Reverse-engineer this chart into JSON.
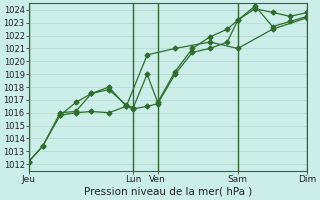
{
  "xlabel": "Pression niveau de la mer( hPa )",
  "bg_color": "#cceee8",
  "grid_minor_color": "#bbddd8",
  "grid_major_color": "#99ccbb",
  "line_color": "#2d6e2d",
  "day_line_color": "#336633",
  "spine_color": "#336633",
  "ylim": [
    1011.5,
    1024.5
  ],
  "yticks": [
    1012,
    1013,
    1014,
    1015,
    1016,
    1017,
    1018,
    1019,
    1020,
    1021,
    1022,
    1023,
    1024
  ],
  "xlim": [
    0,
    8.0
  ],
  "xtick_positions": [
    0.0,
    3.0,
    3.7,
    6.0,
    8.0
  ],
  "xtick_labels": [
    "Jeu",
    "Lun",
    "Ven",
    "Sam",
    "Dim"
  ],
  "day_lines": [
    0.0,
    3.0,
    3.7,
    6.0,
    8.0
  ],
  "line1_x": [
    0,
    0.4,
    0.9,
    1.35,
    1.8,
    2.3,
    2.8,
    3.0,
    3.4,
    3.7,
    4.2,
    4.7,
    5.2,
    5.7,
    6.0,
    6.5,
    7.0,
    7.5,
    8.0
  ],
  "line1_y": [
    1012.2,
    1013.4,
    1015.8,
    1016.0,
    1016.1,
    1016.0,
    1016.5,
    1016.3,
    1016.5,
    1016.7,
    1019.0,
    1020.7,
    1021.0,
    1021.5,
    1023.2,
    1024.1,
    1023.8,
    1023.5,
    1023.8
  ],
  "line2_x": [
    0,
    0.4,
    0.9,
    1.35,
    1.8,
    2.3,
    2.8,
    3.0,
    3.4,
    3.7,
    4.2,
    4.7,
    5.2,
    5.7,
    6.0,
    6.5,
    7.0,
    7.5,
    8.0
  ],
  "line2_y": [
    1012.2,
    1013.4,
    1016.0,
    1016.1,
    1017.5,
    1017.8,
    1016.6,
    1016.4,
    1019.0,
    1016.8,
    1019.2,
    1021.0,
    1021.9,
    1022.5,
    1023.2,
    1024.3,
    1022.7,
    1023.1,
    1023.5
  ],
  "line3_x": [
    0.9,
    1.35,
    1.8,
    2.3,
    2.8,
    3.4,
    4.2,
    5.2,
    6.0,
    7.0,
    8.0
  ],
  "line3_y": [
    1015.8,
    1016.8,
    1017.5,
    1018.0,
    1016.5,
    1020.5,
    1021.0,
    1021.5,
    1021.0,
    1022.5,
    1023.4
  ],
  "marker": "D",
  "markersize": 2.5,
  "linewidth": 0.9,
  "tick_fontsize": 6.0,
  "xlabel_fontsize": 7.5
}
